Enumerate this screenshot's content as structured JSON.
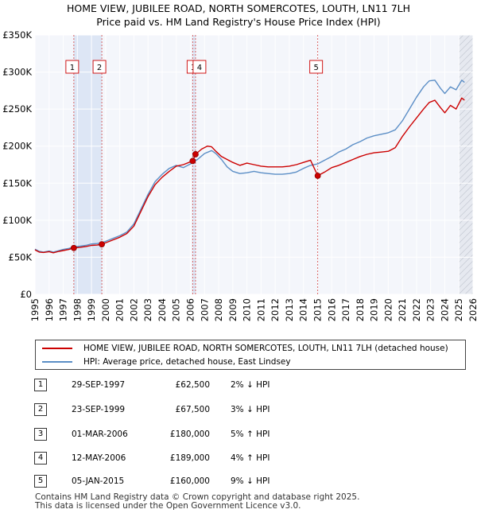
{
  "title_line1": "HOME VIEW, JUBILEE ROAD, NORTH SOMERCOTES, LOUTH, LN11 7LH",
  "title_line2": "Price paid vs. HM Land Registry's House Price Index (HPI)",
  "chart_data": {
    "type": "line",
    "title": "HOME VIEW, JUBILEE ROAD, NORTH SOMERCOTES, LOUTH, LN11 7LH",
    "subtitle": "Price paid vs. HM Land Registry's House Price Index (HPI)",
    "xlabel": "",
    "ylabel": "",
    "xlim": [
      1995,
      2026
    ],
    "ylim": [
      0,
      350000
    ],
    "y_ticks": [
      {
        "value": 0,
        "label": "£0"
      },
      {
        "value": 50000,
        "label": "£50K"
      },
      {
        "value": 100000,
        "label": "£100K"
      },
      {
        "value": 150000,
        "label": "£150K"
      },
      {
        "value": 200000,
        "label": "£200K"
      },
      {
        "value": 250000,
        "label": "£250K"
      },
      {
        "value": 300000,
        "label": "£300K"
      },
      {
        "value": 350000,
        "label": "£350K"
      }
    ],
    "x_ticks": [
      "1995",
      "1996",
      "1997",
      "1998",
      "1999",
      "2000",
      "2001",
      "2002",
      "2003",
      "2004",
      "2005",
      "2006",
      "2007",
      "2008",
      "2009",
      "2010",
      "2011",
      "2012",
      "2013",
      "2014",
      "2015",
      "2016",
      "2017",
      "2018",
      "2019",
      "2020",
      "2021",
      "2022",
      "2023",
      "2024",
      "2025",
      "2026"
    ],
    "grid": true,
    "series": [
      {
        "name": "HOME VIEW, JUBILEE ROAD, NORTH SOMERCOTES, LOUTH, LN11 7LH (detached house)",
        "color": "#cc0000",
        "x": [
          1995.0,
          1995.3,
          1995.6,
          1996.0,
          1996.3,
          1996.7,
          1997.0,
          1997.4,
          1997.75,
          1998.2,
          1998.6,
          1999.0,
          1999.4,
          1999.73,
          2000.2,
          2000.6,
          2001.0,
          2001.5,
          2002.0,
          2002.5,
          2003.0,
          2003.5,
          2004.0,
          2004.5,
          2005.0,
          2005.5,
          2006.16,
          2006.36,
          2006.8,
          2007.2,
          2007.5,
          2007.8,
          2008.2,
          2008.6,
          2009.0,
          2009.5,
          2010.0,
          2010.5,
          2011.0,
          2011.5,
          2012.0,
          2012.5,
          2013.0,
          2013.5,
          2014.0,
          2014.5,
          2015.01,
          2015.5,
          2016.0,
          2016.5,
          2017.0,
          2017.5,
          2018.0,
          2018.5,
          2019.0,
          2019.5,
          2020.0,
          2020.5,
          2021.0,
          2021.5,
          2022.0,
          2022.5,
          2022.9,
          2023.3,
          2023.7,
          2024.0,
          2024.4,
          2024.8,
          2025.2,
          2025.4
        ],
        "values": [
          60000,
          57000,
          56500,
          57500,
          56000,
          58000,
          59000,
          60500,
          62500,
          63500,
          64500,
          66000,
          66500,
          67500,
          71000,
          74000,
          77000,
          82000,
          92000,
          112000,
          132000,
          148000,
          158000,
          166000,
          173000,
          175000,
          180000,
          189000,
          196000,
          200000,
          199000,
          193000,
          186000,
          182000,
          178000,
          174000,
          177000,
          175000,
          173000,
          172000,
          172000,
          172000,
          173000,
          175000,
          178000,
          181000,
          160000,
          165000,
          171000,
          174000,
          178000,
          182000,
          186000,
          189000,
          191000,
          192000,
          193000,
          198000,
          213000,
          226000,
          238000,
          250000,
          259000,
          262000,
          252000,
          245000,
          255000,
          250000,
          265000,
          262000
        ]
      },
      {
        "name": "HPI: Average price, detached house, East Lindsey",
        "color": "#5b8ec6",
        "x": [
          1995.0,
          1995.3,
          1995.6,
          1996.0,
          1996.3,
          1996.7,
          1997.0,
          1997.4,
          1997.75,
          1998.2,
          1998.6,
          1999.0,
          1999.4,
          1999.73,
          2000.2,
          2000.6,
          2001.0,
          2001.5,
          2002.0,
          2002.5,
          2003.0,
          2003.5,
          2004.0,
          2004.5,
          2005.0,
          2005.5,
          2006.0,
          2006.5,
          2007.0,
          2007.5,
          2007.8,
          2008.2,
          2008.6,
          2009.0,
          2009.5,
          2010.0,
          2010.5,
          2011.0,
          2011.5,
          2012.0,
          2012.5,
          2013.0,
          2013.5,
          2014.0,
          2014.5,
          2015.0,
          2015.5,
          2016.0,
          2016.5,
          2017.0,
          2017.5,
          2018.0,
          2018.5,
          2019.0,
          2019.5,
          2020.0,
          2020.5,
          2021.0,
          2021.5,
          2022.0,
          2022.5,
          2022.9,
          2023.3,
          2023.7,
          2024.0,
          2024.4,
          2024.8,
          2025.2,
          2025.4
        ],
        "values": [
          61000,
          58000,
          57000,
          58500,
          57000,
          59000,
          60500,
          62000,
          64000,
          65000,
          66000,
          68000,
          68500,
          69500,
          73000,
          76000,
          79000,
          84000,
          95000,
          115000,
          135000,
          152000,
          162000,
          170000,
          174000,
          171000,
          176000,
          182000,
          190000,
          194000,
          190000,
          182000,
          172000,
          166000,
          163000,
          164000,
          166000,
          164000,
          163000,
          162000,
          162000,
          163000,
          165000,
          170000,
          174000,
          176000,
          181000,
          186000,
          192000,
          196000,
          202000,
          206000,
          211000,
          214000,
          216000,
          218000,
          222000,
          234000,
          250000,
          266000,
          280000,
          288000,
          289000,
          278000,
          271000,
          280000,
          276000,
          289000,
          286000
        ]
      }
    ],
    "markers": [
      {
        "label": "1",
        "x": 1997.75,
        "y": 62500
      },
      {
        "label": "2",
        "x": 1999.73,
        "y": 67500
      },
      {
        "label": "3",
        "x": 2006.16,
        "y": 180000
      },
      {
        "label": "4",
        "x": 2006.36,
        "y": 189000
      },
      {
        "label": "5",
        "x": 2015.01,
        "y": 160000
      }
    ],
    "shaded_ranges": [
      [
        1997.75,
        1999.73
      ],
      [
        2006.16,
        2006.36
      ],
      [
        2025.0,
        2026.0
      ]
    ]
  },
  "legend": {
    "items": [
      {
        "label": "HOME VIEW, JUBILEE ROAD, NORTH SOMERCOTES, LOUTH, LN11 7LH (detached house)",
        "color": "#cc0000"
      },
      {
        "label": "HPI: Average price, detached house, East Lindsey",
        "color": "#5b8ec6"
      }
    ]
  },
  "transactions": [
    {
      "num": "1",
      "date": "29-SEP-1997",
      "price": "£62,500",
      "hpi": "2% ↓ HPI"
    },
    {
      "num": "2",
      "date": "23-SEP-1999",
      "price": "£67,500",
      "hpi": "3% ↓ HPI"
    },
    {
      "num": "3",
      "date": "01-MAR-2006",
      "price": "£180,000",
      "hpi": "5% ↑ HPI"
    },
    {
      "num": "4",
      "date": "12-MAY-2006",
      "price": "£189,000",
      "hpi": "4% ↑ HPI"
    },
    {
      "num": "5",
      "date": "05-JAN-2015",
      "price": "£160,000",
      "hpi": "9% ↓ HPI"
    }
  ],
  "footer": {
    "line1": "Contains HM Land Registry data © Crown copyright and database right 2025.",
    "line2": "This data is licensed under the Open Government Licence v3.0."
  }
}
